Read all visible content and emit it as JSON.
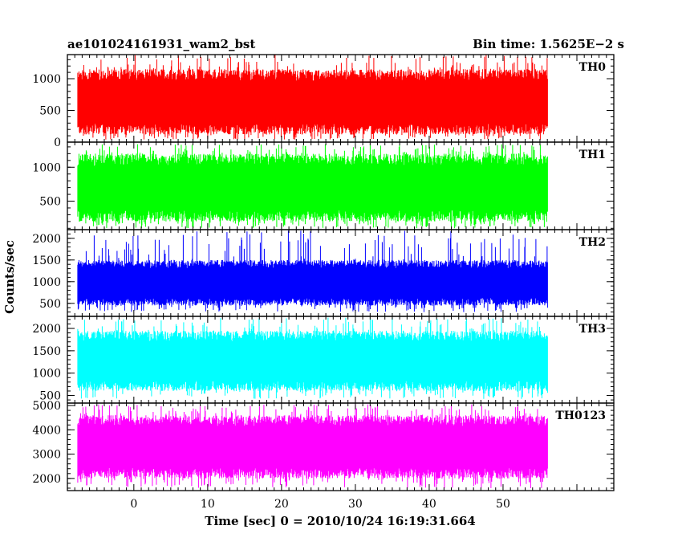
{
  "header": {
    "left_title": "ae101024161931_wam2_bst",
    "right_title": "Bin time: 1.5625E−2 s"
  },
  "axes": {
    "ylabel": "Counts/sec",
    "xlabel": "Time [sec] 0 = 2010/10/24 16:19:31.664"
  },
  "chart_data": {
    "type": "line",
    "bin_time_s": 0.015625,
    "xlim": [
      -9,
      65
    ],
    "x_tick_values": [
      0,
      10,
      20,
      30,
      40,
      50
    ],
    "x_tick_labels": [
      "0",
      "10",
      "20",
      "30",
      "40",
      "50"
    ],
    "data_x_range": [
      -7.6,
      56
    ],
    "panels": [
      {
        "label": "TH0",
        "color": "#ff0000",
        "ylim": [
          0,
          1380
        ],
        "y_ticks": [
          0,
          500,
          1000
        ],
        "y_tick_labels": [
          "0",
          "500",
          "1000"
        ],
        "typical_range": [
          120,
          1150
        ],
        "extreme_range": [
          40,
          1380
        ],
        "mean": 620
      },
      {
        "label": "TH1",
        "color": "#00ff00",
        "ylim": [
          80,
          1370
        ],
        "y_ticks": [
          500,
          1000
        ],
        "y_tick_labels": [
          "500",
          "1000"
        ],
        "typical_range": [
          200,
          1200
        ],
        "extreme_range": [
          100,
          1340
        ],
        "mean": 680
      },
      {
        "label": "TH2",
        "color": "#0000ff",
        "ylim": [
          200,
          2200
        ],
        "y_ticks": [
          500,
          1000,
          1500,
          2000
        ],
        "y_tick_labels": [
          "500",
          "1000",
          "1500",
          "2000"
        ],
        "typical_range": [
          450,
          1500
        ],
        "extreme_range": [
          300,
          2180
        ],
        "mean": 950
      },
      {
        "label": "TH3",
        "color": "#00ffff",
        "ylim": [
          330,
          2270
        ],
        "y_ticks": [
          500,
          1000,
          1500,
          2000
        ],
        "y_tick_labels": [
          "500",
          "1000",
          "1500",
          "2000"
        ],
        "typical_range": [
          600,
          1950
        ],
        "extreme_range": [
          420,
          2250
        ],
        "mean": 1250
      },
      {
        "label": "TH0123",
        "color": "#ff00ff",
        "ylim": [
          1500,
          5100
        ],
        "y_ticks": [
          2000,
          3000,
          4000,
          5000
        ],
        "y_tick_labels": [
          "2000",
          "3000",
          "4000",
          "5000"
        ],
        "typical_range": [
          2000,
          4600
        ],
        "extreme_range": [
          1600,
          5050
        ],
        "mean": 3300
      }
    ]
  }
}
